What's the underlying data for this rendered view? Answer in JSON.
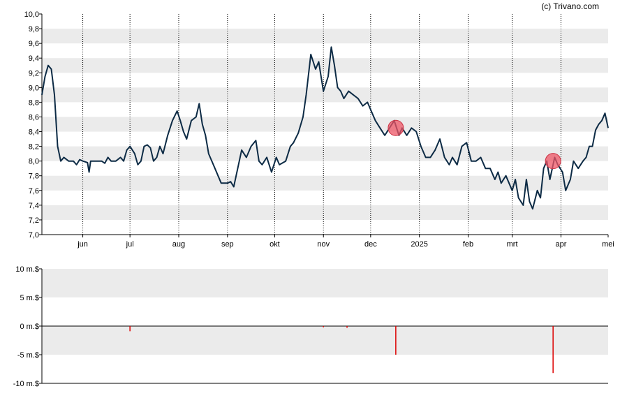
{
  "credit": "(c) Trivano.com",
  "colors": {
    "line": "#0d2b45",
    "band": "#ebebeb",
    "marker": "#ee5566",
    "marker_stroke": "#cc3344",
    "volume_bar": "#dd0000",
    "grid": "#000000"
  },
  "chart_data": [
    {
      "type": "line",
      "title": "",
      "xlabel": "",
      "ylabel": "",
      "x_range": [
        "2024-05-06",
        "2025-05-01"
      ],
      "ylim": [
        7.0,
        10.0
      ],
      "y_ticks": [
        "7,0",
        "7,2",
        "7,4",
        "7,6",
        "7,8",
        "8,0",
        "8,2",
        "8,4",
        "8,6",
        "8,8",
        "9,0",
        "9,2",
        "9,4",
        "9,6",
        "9,8",
        "10,0"
      ],
      "x_ticks": [
        {
          "date": "2024-06-01",
          "label": "jun"
        },
        {
          "date": "2024-07-01",
          "label": "jul"
        },
        {
          "date": "2024-08-01",
          "label": "aug"
        },
        {
          "date": "2024-09-01",
          "label": "sep"
        },
        {
          "date": "2024-10-01",
          "label": "okt"
        },
        {
          "date": "2024-11-01",
          "label": "nov"
        },
        {
          "date": "2024-12-01",
          "label": "dec"
        },
        {
          "date": "2025-01-01",
          "label": "2025"
        },
        {
          "date": "2025-02-01",
          "label": "feb"
        },
        {
          "date": "2025-03-01",
          "label": "mrt"
        },
        {
          "date": "2025-04-01",
          "label": "apr"
        },
        {
          "date": "2025-05-01",
          "label": "mei"
        }
      ],
      "grid": "vertical dotted at month ticks, alternating horizontal bands",
      "series": [
        {
          "points": [
            [
              "2024-05-06",
              8.9
            ],
            [
              "2024-05-08",
              9.15
            ],
            [
              "2024-05-10",
              9.3
            ],
            [
              "2024-05-12",
              9.25
            ],
            [
              "2024-05-14",
              8.9
            ],
            [
              "2024-05-16",
              8.2
            ],
            [
              "2024-05-18",
              8.0
            ],
            [
              "2024-05-20",
              8.05
            ],
            [
              "2024-05-23",
              8.0
            ],
            [
              "2024-05-26",
              8.0
            ],
            [
              "2024-05-28",
              7.95
            ],
            [
              "2024-05-30",
              8.02
            ],
            [
              "2024-06-01",
              8.0
            ],
            [
              "2024-06-04",
              7.98
            ],
            [
              "2024-06-05",
              7.85
            ],
            [
              "2024-06-06",
              8.0
            ],
            [
              "2024-06-10",
              8.0
            ],
            [
              "2024-06-13",
              8.0
            ],
            [
              "2024-06-15",
              7.97
            ],
            [
              "2024-06-17",
              8.05
            ],
            [
              "2024-06-19",
              8.0
            ],
            [
              "2024-06-22",
              8.0
            ],
            [
              "2024-06-25",
              8.05
            ],
            [
              "2024-06-27",
              8.0
            ],
            [
              "2024-06-29",
              8.15
            ],
            [
              "2024-07-01",
              8.2
            ],
            [
              "2024-07-04",
              8.1
            ],
            [
              "2024-07-06",
              7.95
            ],
            [
              "2024-07-08",
              8.0
            ],
            [
              "2024-07-10",
              8.2
            ],
            [
              "2024-07-12",
              8.22
            ],
            [
              "2024-07-14",
              8.18
            ],
            [
              "2024-07-16",
              8.0
            ],
            [
              "2024-07-18",
              8.05
            ],
            [
              "2024-07-20",
              8.2
            ],
            [
              "2024-07-22",
              8.1
            ],
            [
              "2024-07-25",
              8.35
            ],
            [
              "2024-07-28",
              8.55
            ],
            [
              "2024-07-31",
              8.68
            ],
            [
              "2024-08-02",
              8.55
            ],
            [
              "2024-08-04",
              8.4
            ],
            [
              "2024-08-06",
              8.3
            ],
            [
              "2024-08-09",
              8.55
            ],
            [
              "2024-08-12",
              8.6
            ],
            [
              "2024-08-14",
              8.78
            ],
            [
              "2024-08-16",
              8.5
            ],
            [
              "2024-08-18",
              8.35
            ],
            [
              "2024-08-20",
              8.1
            ],
            [
              "2024-08-23",
              7.95
            ],
            [
              "2024-08-26",
              7.8
            ],
            [
              "2024-08-28",
              7.7
            ],
            [
              "2024-09-01",
              7.7
            ],
            [
              "2024-09-03",
              7.72
            ],
            [
              "2024-09-05",
              7.65
            ],
            [
              "2024-09-08",
              7.95
            ],
            [
              "2024-09-10",
              8.15
            ],
            [
              "2024-09-13",
              8.05
            ],
            [
              "2024-09-16",
              8.2
            ],
            [
              "2024-09-19",
              8.28
            ],
            [
              "2024-09-21",
              8.0
            ],
            [
              "2024-09-23",
              7.95
            ],
            [
              "2024-09-26",
              8.05
            ],
            [
              "2024-09-29",
              7.85
            ],
            [
              "2024-10-02",
              8.05
            ],
            [
              "2024-10-04",
              7.95
            ],
            [
              "2024-10-08",
              8.0
            ],
            [
              "2024-10-11",
              8.2
            ],
            [
              "2024-10-13",
              8.25
            ],
            [
              "2024-10-16",
              8.38
            ],
            [
              "2024-10-19",
              8.6
            ],
            [
              "2024-10-21",
              8.9
            ],
            [
              "2024-10-24",
              9.45
            ],
            [
              "2024-10-27",
              9.25
            ],
            [
              "2024-10-29",
              9.35
            ],
            [
              "2024-11-01",
              8.95
            ],
            [
              "2024-11-04",
              9.15
            ],
            [
              "2024-11-06",
              9.55
            ],
            [
              "2024-11-08",
              9.3
            ],
            [
              "2024-11-10",
              9.0
            ],
            [
              "2024-11-12",
              8.95
            ],
            [
              "2024-11-14",
              8.85
            ],
            [
              "2024-11-17",
              8.95
            ],
            [
              "2024-11-20",
              8.9
            ],
            [
              "2024-11-23",
              8.85
            ],
            [
              "2024-11-26",
              8.75
            ],
            [
              "2024-11-29",
              8.8
            ],
            [
              "2024-12-01",
              8.7
            ],
            [
              "2024-12-04",
              8.55
            ],
            [
              "2024-12-07",
              8.45
            ],
            [
              "2024-12-10",
              8.35
            ],
            [
              "2024-12-13",
              8.45
            ],
            [
              "2024-12-16",
              8.55
            ],
            [
              "2024-12-19",
              8.35
            ],
            [
              "2024-12-21",
              8.45
            ],
            [
              "2024-12-24",
              8.35
            ],
            [
              "2024-12-27",
              8.45
            ],
            [
              "2024-12-30",
              8.4
            ],
            [
              "2025-01-02",
              8.2
            ],
            [
              "2025-01-05",
              8.05
            ],
            [
              "2025-01-08",
              8.05
            ],
            [
              "2025-01-11",
              8.15
            ],
            [
              "2025-01-14",
              8.3
            ],
            [
              "2025-01-17",
              8.05
            ],
            [
              "2025-01-20",
              7.95
            ],
            [
              "2025-01-22",
              8.05
            ],
            [
              "2025-01-25",
              7.95
            ],
            [
              "2025-01-28",
              8.2
            ],
            [
              "2025-01-31",
              8.25
            ],
            [
              "2025-02-03",
              8.0
            ],
            [
              "2025-02-06",
              8.0
            ],
            [
              "2025-02-09",
              8.05
            ],
            [
              "2025-02-12",
              7.9
            ],
            [
              "2025-02-15",
              7.9
            ],
            [
              "2025-02-18",
              7.75
            ],
            [
              "2025-02-20",
              7.85
            ],
            [
              "2025-02-22",
              7.7
            ],
            [
              "2025-02-25",
              7.8
            ],
            [
              "2025-02-27",
              7.7
            ],
            [
              "2025-03-01",
              7.6
            ],
            [
              "2025-03-03",
              7.75
            ],
            [
              "2025-03-05",
              7.5
            ],
            [
              "2025-03-08",
              7.4
            ],
            [
              "2025-03-10",
              7.75
            ],
            [
              "2025-03-12",
              7.45
            ],
            [
              "2025-03-14",
              7.35
            ],
            [
              "2025-03-17",
              7.6
            ],
            [
              "2025-03-19",
              7.5
            ],
            [
              "2025-03-21",
              7.9
            ],
            [
              "2025-03-23",
              8.0
            ],
            [
              "2025-03-25",
              7.75
            ],
            [
              "2025-03-28",
              8.05
            ],
            [
              "2025-03-30",
              7.95
            ],
            [
              "2025-04-02",
              7.85
            ],
            [
              "2025-04-04",
              7.6
            ],
            [
              "2025-04-07",
              7.75
            ],
            [
              "2025-04-09",
              8.0
            ],
            [
              "2025-04-12",
              7.9
            ],
            [
              "2025-04-15",
              8.0
            ],
            [
              "2025-04-17",
              8.05
            ],
            [
              "2025-04-19",
              8.2
            ],
            [
              "2025-04-21",
              8.2
            ],
            [
              "2025-04-23",
              8.42
            ],
            [
              "2025-04-25",
              8.5
            ],
            [
              "2025-04-27",
              8.55
            ],
            [
              "2025-04-29",
              8.65
            ],
            [
              "2025-05-01",
              8.45
            ]
          ]
        }
      ],
      "markers": [
        {
          "date": "2024-12-17",
          "value": 8.45
        },
        {
          "date": "2025-03-27",
          "value": 8.0
        }
      ]
    },
    {
      "type": "bar",
      "title": "",
      "xlabel": "",
      "ylabel": "",
      "ylim": [
        -10,
        10
      ],
      "y_ticks": [
        "10 m.$",
        "5 m.$",
        "0 m.$",
        "-5 m.$",
        "-10 m.$"
      ],
      "bars": [
        {
          "date": "2024-07-01",
          "value": -0.9
        },
        {
          "date": "2024-11-01",
          "value": -0.2
        },
        {
          "date": "2024-11-16",
          "value": -0.3
        },
        {
          "date": "2024-12-17",
          "value": -5.0
        },
        {
          "date": "2025-03-27",
          "value": -8.2
        }
      ]
    }
  ]
}
